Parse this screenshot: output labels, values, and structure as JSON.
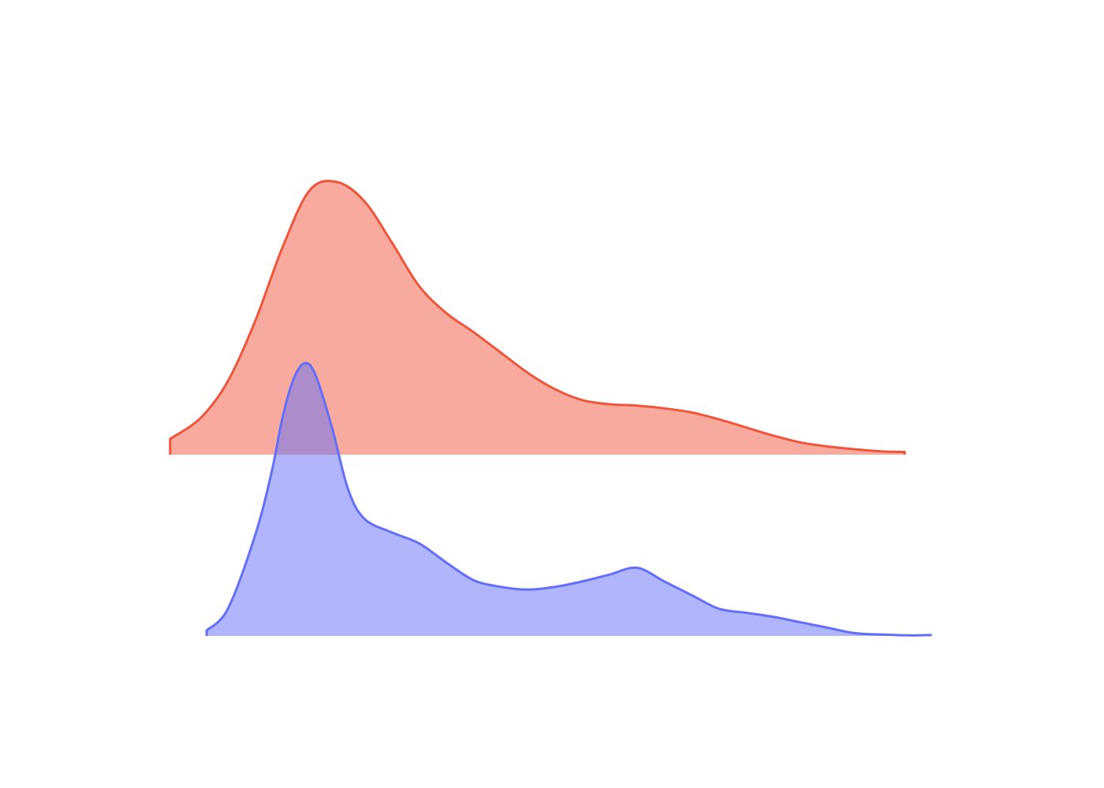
{
  "chart_data": {
    "type": "area",
    "subtype": "ridgeline-density",
    "title": "",
    "xlabel": "",
    "ylabel": "",
    "axes_visible": false,
    "grid": false,
    "legend": "none",
    "xlim": [
      -1.6,
      12.5
    ],
    "ylim": [
      0,
      1.0
    ],
    "series": [
      {
        "color": "#EF553B",
        "fill": "#F8A99F",
        "x": [
          -1.56,
          -1.0,
          -0.5,
          0.0,
          0.5,
          1.0,
          1.5,
          2.0,
          2.5,
          3.0,
          3.5,
          4.0,
          4.5,
          5.0,
          5.5,
          6.0,
          6.5,
          7.0,
          7.5,
          8.0,
          8.5,
          9.0,
          9.5,
          10.0,
          10.5,
          11.0,
          11.5,
          11.91
        ],
        "y": [
          0.058,
          0.135,
          0.27,
          0.49,
          0.76,
          0.97,
          1.0,
          0.93,
          0.78,
          0.62,
          0.52,
          0.45,
          0.375,
          0.3,
          0.24,
          0.2,
          0.185,
          0.18,
          0.17,
          0.155,
          0.13,
          0.1,
          0.07,
          0.045,
          0.03,
          0.02,
          0.012,
          0.01
        ]
      },
      {
        "color": "#636EFA",
        "fill": "#AFB5FB",
        "x": [
          -0.89,
          -0.5,
          0.0,
          0.3,
          0.5,
          0.7,
          0.9,
          1.1,
          1.4,
          1.7,
          2.0,
          2.5,
          3.0,
          3.5,
          4.0,
          4.5,
          5.0,
          5.5,
          6.0,
          6.5,
          7.0,
          7.5,
          8.0,
          8.5,
          9.0,
          9.5,
          10.0,
          10.5,
          11.0,
          11.5,
          12.0,
          12.39
        ],
        "y": [
          0.02,
          0.1,
          0.37,
          0.6,
          0.8,
          0.94,
          1.0,
          0.96,
          0.77,
          0.54,
          0.43,
          0.38,
          0.34,
          0.27,
          0.205,
          0.18,
          0.17,
          0.18,
          0.2,
          0.225,
          0.25,
          0.2,
          0.15,
          0.1,
          0.085,
          0.07,
          0.05,
          0.03,
          0.01,
          0.005,
          0.002,
          0.003
        ]
      }
    ]
  }
}
